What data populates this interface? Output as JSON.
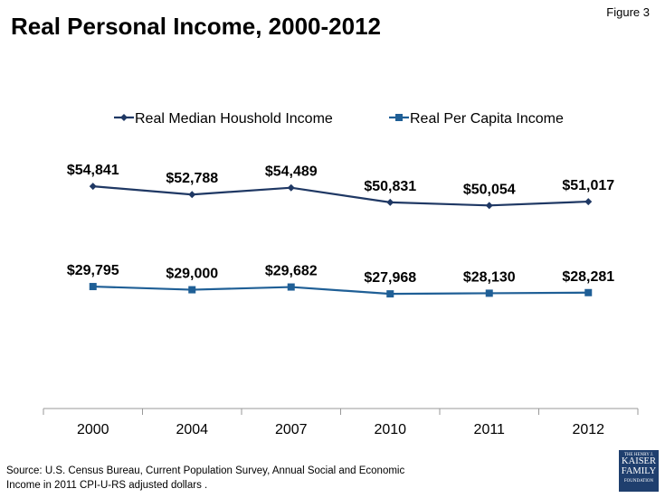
{
  "title": "Real Personal Income, 2000-2012",
  "figure_label": "Figure 3",
  "source": [
    "Source: U.S. Census Bureau, Current Population Survey, Annual Social and Economic",
    "Income in 2011 CPI-U-RS adjusted dollars ."
  ],
  "logo": {
    "line1": "THE HENRY J.",
    "line2": "KAISER",
    "line3": "FAMILY",
    "line4": "FOUNDATION"
  },
  "chart_data": {
    "type": "line",
    "title": "",
    "categories": [
      "2000",
      "2004",
      "2007",
      "2010",
      "2011",
      "2012"
    ],
    "legend_placement": "top",
    "grid": false,
    "ylim": [
      0,
      70000
    ],
    "y_axis_visible": false,
    "series": [
      {
        "name": "Real Median Houshold Income",
        "values": [
          54841,
          52788,
          54489,
          50831,
          50054,
          51017
        ],
        "labels": [
          "$54,841",
          "$52,788",
          "$54,489",
          "$50,831",
          "$50,054",
          "$51,017"
        ],
        "color": "#1f3864",
        "marker": "diamond"
      },
      {
        "name": "Real Per Capita Income",
        "values": [
          29795,
          29000,
          29682,
          27968,
          28130,
          28281
        ],
        "labels": [
          "$29,795",
          "$29,000",
          "$29,682",
          "$27,968",
          "$28,130",
          "$28,281"
        ],
        "color": "#1f5f96",
        "marker": "square"
      }
    ]
  }
}
